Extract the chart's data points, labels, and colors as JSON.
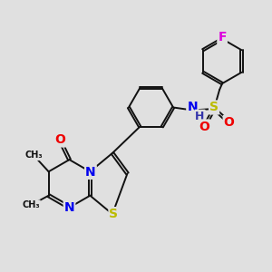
{
  "bg_color": "#e0e0e0",
  "bond_color": "#111111",
  "bond_width": 1.4,
  "dbo": 0.055,
  "atom_colors": {
    "N": "#0000ee",
    "O": "#ee0000",
    "S": "#bbbb00",
    "F": "#dd00dd",
    "H": "#3333aa",
    "C": "#111111"
  }
}
